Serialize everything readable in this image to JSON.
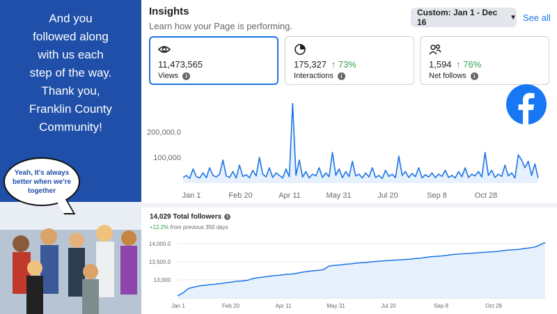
{
  "promo": {
    "message": "And you\nfollowed along\nwith us each\nstep of the way.\nThank you,\nFranklin County\nCommunity!",
    "bubble_text": "Yeah, It's always better when we're together"
  },
  "insights": {
    "title": "Insights",
    "subtitle": "Learn how your Page is performing.",
    "date_range": "Custom: Jan 1 - Dec 16",
    "see_all": "See all",
    "metrics": [
      {
        "icon": "eye-icon",
        "value": "11,473,565",
        "change": "",
        "label": "Views"
      },
      {
        "icon": "interactions-icon",
        "value": "175,327",
        "change": "↑ 73%",
        "label": "Interactions"
      },
      {
        "icon": "people-icon",
        "value": "1,594",
        "change": "↑ 76%",
        "label": "Net follows"
      }
    ],
    "info_glyph": "i"
  },
  "colors": {
    "accent": "#1b74e4",
    "positive": "#31a24c",
    "facebook": "#1877f2",
    "promo_bg": "#1f4fa8"
  },
  "chart_data": [
    {
      "type": "line",
      "title": "Views",
      "x_tick_labels": [
        "Jan 1",
        "Feb 20",
        "Apr 11",
        "May 31",
        "Jul 20",
        "Sep 8",
        "Oct 28"
      ],
      "y_tick_labels": [
        "200,000.0",
        "100,000"
      ],
      "ylim": [
        0,
        320000
      ],
      "y": [
        22000,
        30000,
        18000,
        55000,
        25000,
        20000,
        40000,
        21000,
        60000,
        30000,
        24000,
        35000,
        90000,
        28000,
        22000,
        45000,
        20000,
        70000,
        26000,
        33000,
        21000,
        50000,
        28000,
        100000,
        35000,
        24000,
        60000,
        22000,
        40000,
        30000,
        20000,
        55000,
        25000,
        310000,
        30000,
        90000,
        24000,
        45000,
        20000,
        35000,
        28000,
        60000,
        22000,
        40000,
        25000,
        120000,
        30000,
        55000,
        21000,
        45000,
        25000,
        85000,
        28000,
        35000,
        20000,
        40000,
        24000,
        60000,
        22000,
        30000,
        18000,
        50000,
        26000,
        35000,
        21000,
        105000,
        30000,
        45000,
        22000,
        38000,
        25000,
        60000,
        20000,
        33000,
        24000,
        40000,
        21000,
        35000,
        26000,
        50000,
        22000,
        30000,
        20000,
        45000,
        25000,
        60000,
        22000,
        35000,
        28000,
        45000,
        24000,
        120000,
        30000,
        50000,
        22000,
        35000,
        26000,
        70000,
        28000,
        40000,
        20000,
        110000,
        90000,
        60000,
        85000,
        30000,
        75000,
        20000
      ]
    },
    {
      "type": "area",
      "title": "14,029 Total followers",
      "subtitle_change": "+12.2%",
      "subtitle_rest": "from previous 350 days",
      "x_tick_labels": [
        "Jan 1",
        "Feb 20",
        "Apr 11",
        "May 31",
        "Jul 20",
        "Sep 8",
        "Oct 28"
      ],
      "y_tick_labels": [
        "14,000.0",
        "13,500.0",
        "13,000"
      ],
      "ylim": [
        12500,
        14150
      ],
      "y": [
        12560,
        12640,
        12760,
        12800,
        12830,
        12850,
        12870,
        12880,
        12900,
        12920,
        12940,
        12960,
        12970,
        12990,
        13040,
        13060,
        13080,
        13100,
        13120,
        13130,
        13150,
        13160,
        13180,
        13210,
        13230,
        13250,
        13260,
        13280,
        13380,
        13400,
        13410,
        13430,
        13440,
        13460,
        13470,
        13480,
        13500,
        13510,
        13520,
        13530,
        13540,
        13550,
        13560,
        13570,
        13590,
        13600,
        13620,
        13640,
        13650,
        13660,
        13680,
        13700,
        13710,
        13720,
        13730,
        13740,
        13750,
        13760,
        13770,
        13780,
        13800,
        13820,
        13830,
        13840,
        13860,
        13880,
        13900,
        13960,
        14029
      ]
    }
  ]
}
